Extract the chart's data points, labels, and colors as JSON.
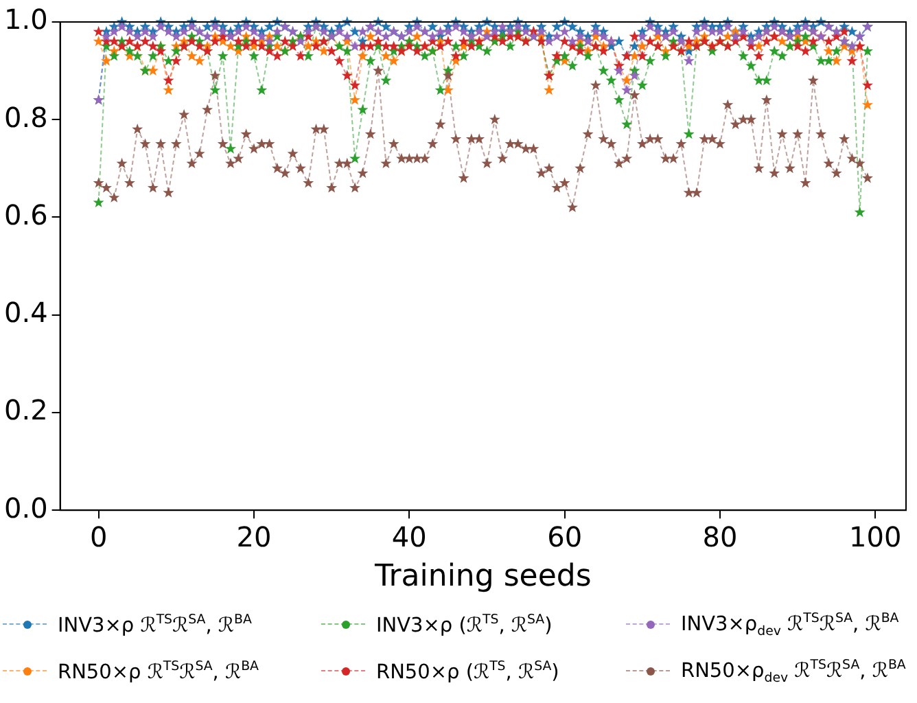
{
  "chart_data": {
    "type": "line",
    "xlabel": "Training seeds",
    "x": [
      0,
      1,
      2,
      3,
      4,
      5,
      6,
      7,
      8,
      9,
      10,
      11,
      12,
      13,
      14,
      15,
      16,
      17,
      18,
      19,
      20,
      21,
      22,
      23,
      24,
      25,
      26,
      27,
      28,
      29,
      30,
      31,
      32,
      33,
      34,
      35,
      36,
      37,
      38,
      39,
      40,
      41,
      42,
      43,
      44,
      45,
      46,
      47,
      48,
      49,
      50,
      51,
      52,
      53,
      54,
      55,
      56,
      57,
      58,
      59,
      60,
      61,
      62,
      63,
      64,
      65,
      66,
      67,
      68,
      69,
      70,
      71,
      72,
      73,
      74,
      75,
      76,
      77,
      78,
      79,
      80,
      81,
      82,
      83,
      84,
      85,
      86,
      87,
      88,
      89,
      90,
      91,
      92,
      93,
      94,
      95,
      96,
      97,
      98,
      99
    ],
    "xlim": [
      -4.95,
      103.95
    ],
    "xticks": [
      0,
      20,
      40,
      60,
      80,
      100
    ],
    "ylim": [
      0,
      1
    ],
    "yticks": [
      {
        "value": 0,
        "label": "0.0"
      },
      0.2,
      0.4,
      0.6,
      0.8,
      {
        "value": 1,
        "label": "1.0"
      }
    ],
    "grid": false,
    "legend": "bottom",
    "marker": "star",
    "line_style": "dashed",
    "series": [
      {
        "name": "INV3×ρ ℛ$^{TS}$ℛ$^{SA}$, ℛ$^{BA}$",
        "color": "#1f77b4",
        "values": [
          0.84,
          0.98,
          0.99,
          1.0,
          0.99,
          0.98,
          0.99,
          0.98,
          1.0,
          0.99,
          0.98,
          0.99,
          1.0,
          0.98,
          0.99,
          1.0,
          0.99,
          0.98,
          0.99,
          1.0,
          0.99,
          0.98,
          0.99,
          1.0,
          0.99,
          0.98,
          0.97,
          0.99,
          1.0,
          0.99,
          0.98,
          0.99,
          1.0,
          0.98,
          0.96,
          0.99,
          1.0,
          0.99,
          0.98,
          0.97,
          0.99,
          1.0,
          0.98,
          0.99,
          0.97,
          0.99,
          1.0,
          0.99,
          0.98,
          0.99,
          1.0,
          0.99,
          0.98,
          0.99,
          1.0,
          0.99,
          0.98,
          0.99,
          0.97,
          0.99,
          1.0,
          0.99,
          0.98,
          0.97,
          0.99,
          0.98,
          0.95,
          0.96,
          0.93,
          0.95,
          0.98,
          1.0,
          0.99,
          0.98,
          0.99,
          0.97,
          0.94,
          0.99,
          1.0,
          0.99,
          0.99,
          1.0,
          0.98,
          0.99,
          0.97,
          0.98,
          0.99,
          1.0,
          0.99,
          0.98,
          0.99,
          1.0,
          0.99,
          1.0,
          0.99,
          0.98,
          0.99,
          0.98,
          0.97,
          0.99
        ]
      },
      {
        "name": "RN50×ρ ℛ$^{TS}$ℛ$^{SA}$, ℛ$^{BA}$",
        "color": "#ff7f0e",
        "values": [
          0.96,
          0.92,
          0.94,
          0.95,
          0.93,
          0.95,
          0.9,
          0.9,
          0.95,
          0.86,
          0.95,
          0.96,
          0.93,
          0.92,
          0.95,
          0.97,
          0.96,
          0.95,
          0.94,
          0.97,
          0.95,
          0.96,
          0.97,
          0.95,
          0.94,
          0.96,
          0.97,
          0.95,
          0.96,
          0.94,
          0.97,
          0.95,
          0.96,
          0.84,
          0.93,
          0.97,
          0.95,
          0.93,
          0.92,
          0.94,
          0.96,
          0.97,
          0.95,
          0.94,
          0.96,
          0.86,
          0.92,
          0.95,
          0.97,
          0.96,
          0.98,
          0.96,
          0.97,
          0.98,
          0.97,
          0.96,
          0.98,
          0.97,
          0.86,
          0.93,
          0.92,
          0.95,
          0.96,
          0.94,
          0.97,
          0.95,
          0.96,
          0.91,
          0.88,
          0.93,
          0.95,
          0.96,
          0.97,
          0.94,
          0.95,
          0.96,
          0.95,
          0.96,
          0.97,
          0.95,
          0.96,
          0.97,
          0.98,
          0.97,
          0.96,
          0.95,
          0.98,
          0.97,
          0.96,
          0.95,
          0.97,
          0.96,
          0.98,
          0.97,
          0.94,
          0.92,
          0.95,
          0.94,
          0.95,
          0.83
        ]
      },
      {
        "name": "INV3×ρ (ℛ$^{TS}$,  ℛ$^{SA}$)",
        "color": "#2ca02c",
        "values": [
          0.63,
          0.95,
          0.93,
          0.96,
          0.94,
          0.93,
          0.9,
          0.93,
          0.95,
          0.92,
          0.94,
          0.95,
          0.97,
          0.96,
          0.94,
          0.86,
          0.93,
          0.74,
          0.95,
          0.96,
          0.93,
          0.86,
          0.95,
          0.97,
          0.94,
          0.96,
          0.97,
          0.93,
          0.99,
          0.96,
          0.97,
          0.95,
          0.94,
          0.72,
          0.82,
          0.92,
          0.95,
          0.88,
          0.94,
          0.95,
          0.96,
          0.95,
          0.93,
          0.94,
          0.86,
          0.9,
          0.95,
          0.93,
          0.96,
          0.95,
          0.94,
          0.96,
          0.97,
          0.95,
          0.98,
          0.96,
          0.97,
          0.96,
          0.89,
          0.92,
          0.93,
          0.91,
          0.95,
          0.93,
          0.95,
          0.9,
          0.88,
          0.84,
          0.79,
          0.9,
          0.87,
          0.92,
          0.95,
          0.93,
          0.96,
          0.94,
          0.77,
          0.95,
          0.96,
          0.94,
          0.96,
          0.95,
          0.97,
          0.93,
          0.91,
          0.88,
          0.88,
          0.94,
          0.93,
          0.95,
          0.96,
          0.97,
          0.95,
          0.92,
          0.92,
          0.94,
          0.96,
          0.95,
          0.61,
          0.94
        ]
      },
      {
        "name": "RN50×ρ (ℛ$^{TS}$,  ℛ$^{SA}$)",
        "color": "#d62728",
        "values": [
          0.98,
          0.96,
          0.96,
          0.95,
          0.96,
          0.95,
          0.96,
          0.95,
          0.94,
          0.88,
          0.92,
          0.95,
          0.96,
          0.95,
          0.94,
          0.96,
          0.97,
          0.97,
          0.96,
          0.95,
          0.96,
          0.95,
          0.94,
          0.93,
          0.96,
          0.95,
          0.93,
          0.97,
          0.95,
          0.96,
          0.94,
          0.92,
          0.89,
          0.87,
          0.95,
          0.95,
          0.96,
          0.95,
          0.95,
          0.94,
          0.95,
          0.94,
          0.95,
          0.96,
          0.95,
          0.96,
          0.93,
          0.96,
          0.95,
          0.96,
          0.97,
          0.97,
          0.96,
          0.97,
          0.97,
          0.96,
          0.98,
          0.96,
          0.89,
          0.93,
          0.96,
          0.95,
          0.94,
          0.96,
          0.95,
          0.94,
          0.96,
          0.91,
          0.93,
          0.97,
          0.93,
          0.96,
          0.95,
          0.97,
          0.95,
          0.94,
          0.96,
          0.95,
          0.96,
          0.95,
          0.96,
          0.95,
          0.96,
          0.97,
          0.95,
          0.93,
          0.96,
          0.97,
          0.98,
          0.97,
          0.95,
          0.94,
          0.96,
          0.97,
          0.96,
          0.97,
          0.98,
          0.92,
          0.95,
          0.87
        ]
      },
      {
        "name": "INV3×ρ$_{dev}$ ℛ$^{TS}$ℛ$^{SA}$, ℛ$^{BA}$",
        "color": "#9467bd",
        "values": [
          0.84,
          0.97,
          0.98,
          0.99,
          0.98,
          0.97,
          0.98,
          0.97,
          0.99,
          0.98,
          0.97,
          0.98,
          0.99,
          0.98,
          0.97,
          0.99,
          0.98,
          0.97,
          0.98,
          0.99,
          0.98,
          0.97,
          0.96,
          0.98,
          0.99,
          0.98,
          0.96,
          0.98,
          0.99,
          0.98,
          0.97,
          0.98,
          0.97,
          0.95,
          0.98,
          0.99,
          0.98,
          0.97,
          0.98,
          0.97,
          0.98,
          0.99,
          0.98,
          0.97,
          0.98,
          0.98,
          0.99,
          0.98,
          0.97,
          0.98,
          0.97,
          0.98,
          0.99,
          0.98,
          0.99,
          0.98,
          0.97,
          0.98,
          0.96,
          0.97,
          0.98,
          0.96,
          0.97,
          0.96,
          0.98,
          0.97,
          0.96,
          0.9,
          0.86,
          0.89,
          0.97,
          0.99,
          0.98,
          0.97,
          0.98,
          0.96,
          0.92,
          0.98,
          0.99,
          0.98,
          0.98,
          0.99,
          0.97,
          0.98,
          0.96,
          0.97,
          0.98,
          0.99,
          0.98,
          0.97,
          0.98,
          0.99,
          0.98,
          0.97,
          0.99,
          0.98,
          0.96,
          0.95,
          0.97,
          0.99
        ]
      },
      {
        "name": "RN50×ρ$_{dev}$ ℛ$^{TS}$ℛ$^{SA}$, ℛ$^{BA}$",
        "color": "#8c564b",
        "values": [
          0.67,
          0.66,
          0.64,
          0.71,
          0.67,
          0.78,
          0.75,
          0.66,
          0.75,
          0.65,
          0.75,
          0.81,
          0.71,
          0.73,
          0.82,
          0.89,
          0.75,
          0.71,
          0.72,
          0.77,
          0.74,
          0.75,
          0.75,
          0.7,
          0.69,
          0.73,
          0.7,
          0.67,
          0.78,
          0.78,
          0.66,
          0.71,
          0.71,
          0.66,
          0.69,
          0.77,
          0.9,
          0.71,
          0.75,
          0.72,
          0.72,
          0.72,
          0.72,
          0.75,
          0.79,
          0.89,
          0.76,
          0.68,
          0.76,
          0.76,
          0.71,
          0.8,
          0.72,
          0.75,
          0.75,
          0.74,
          0.74,
          0.69,
          0.7,
          0.66,
          0.67,
          0.62,
          0.7,
          0.77,
          0.87,
          0.76,
          0.75,
          0.71,
          0.72,
          0.85,
          0.75,
          0.76,
          0.76,
          0.72,
          0.72,
          0.75,
          0.65,
          0.65,
          0.76,
          0.76,
          0.75,
          0.83,
          0.79,
          0.8,
          0.8,
          0.7,
          0.84,
          0.69,
          0.77,
          0.7,
          0.77,
          0.67,
          0.88,
          0.77,
          0.71,
          0.69,
          0.76,
          0.72,
          0.71,
          0.68
        ]
      }
    ]
  }
}
